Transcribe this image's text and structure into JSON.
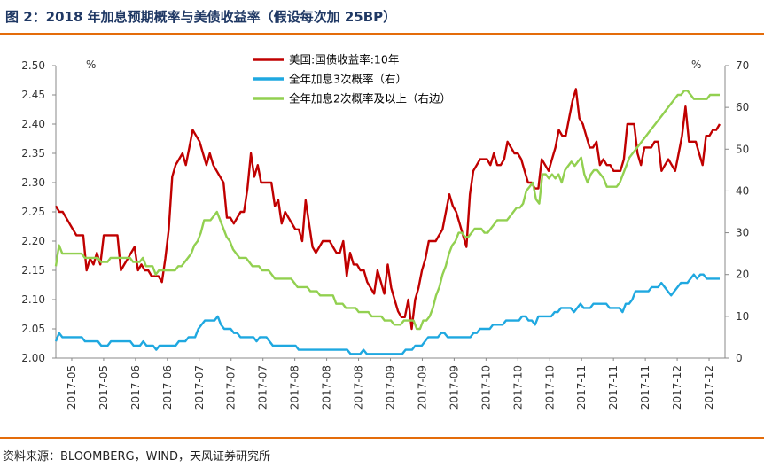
{
  "header": {
    "title": "图 2：2018 年加息预期概率与美债收益率（假设每次加 25BP）"
  },
  "footer": {
    "source": "资料来源：BLOOMBERG，WIND，天风证券研究所"
  },
  "colors": {
    "accent_rule": "#e46c0a",
    "title": "#1f3864",
    "series_red": "#c00000",
    "series_blue": "#1fa8e0",
    "series_green": "#92d050"
  },
  "chart_data": {
    "type": "line",
    "title": "",
    "y_left": {
      "unit_label": "%",
      "range": [
        2.0,
        2.5
      ],
      "ticks": [
        "2.00",
        "2.05",
        "2.10",
        "2.15",
        "2.20",
        "2.25",
        "2.30",
        "2.35",
        "2.40",
        "2.45",
        "2.50"
      ]
    },
    "y_right": {
      "unit_label": "%",
      "range": [
        0,
        70
      ],
      "ticks": [
        "0",
        "10",
        "20",
        "30",
        "40",
        "50",
        "60",
        "70"
      ]
    },
    "x_tick_labels": [
      "2017-05",
      "2017-05",
      "2017-06",
      "2017-06",
      "2017-07",
      "2017-07",
      "2017-07",
      "2017-08",
      "2017-08",
      "2017-08",
      "2017-09",
      "2017-09",
      "2017-09",
      "2017-10",
      "2017-10",
      "2017-10",
      "2017-11",
      "2017-11",
      "2017-11",
      "2017-12",
      "2017-12"
    ],
    "legend_position": "top-center",
    "grid": false,
    "series": [
      {
        "name": "美国:国债收益率:10年",
        "axis": "left",
        "color": "#c00000",
        "values": [
          2.26,
          2.25,
          2.25,
          2.24,
          2.23,
          2.22,
          2.21,
          2.21,
          2.21,
          2.15,
          2.17,
          2.16,
          2.18,
          2.16,
          2.21,
          2.21,
          2.21,
          2.21,
          2.21,
          2.15,
          2.16,
          2.17,
          2.18,
          2.19,
          2.15,
          2.16,
          2.15,
          2.15,
          2.14,
          2.14,
          2.14,
          2.13,
          2.17,
          2.22,
          2.31,
          2.33,
          2.34,
          2.35,
          2.33,
          2.36,
          2.39,
          2.38,
          2.37,
          2.35,
          2.33,
          2.35,
          2.33,
          2.32,
          2.31,
          2.3,
          2.24,
          2.24,
          2.23,
          2.24,
          2.25,
          2.25,
          2.29,
          2.35,
          2.31,
          2.33,
          2.3,
          2.3,
          2.3,
          2.3,
          2.26,
          2.27,
          2.23,
          2.25,
          2.24,
          2.23,
          2.22,
          2.22,
          2.2,
          2.27,
          2.23,
          2.19,
          2.18,
          2.19,
          2.2,
          2.2,
          2.2,
          2.19,
          2.18,
          2.18,
          2.2,
          2.14,
          2.18,
          2.16,
          2.16,
          2.15,
          2.15,
          2.13,
          2.12,
          2.11,
          2.15,
          2.13,
          2.11,
          2.16,
          2.12,
          2.1,
          2.08,
          2.07,
          2.07,
          2.1,
          2.05,
          2.1,
          2.12,
          2.15,
          2.17,
          2.2,
          2.2,
          2.2,
          2.21,
          2.22,
          2.25,
          2.28,
          2.26,
          2.25,
          2.23,
          2.21,
          2.19,
          2.28,
          2.32,
          2.33,
          2.34,
          2.34,
          2.34,
          2.33,
          2.35,
          2.33,
          2.33,
          2.34,
          2.37,
          2.36,
          2.35,
          2.35,
          2.34,
          2.32,
          2.3,
          2.3,
          2.29,
          2.29,
          2.34,
          2.33,
          2.32,
          2.34,
          2.36,
          2.39,
          2.38,
          2.38,
          2.41,
          2.44,
          2.46,
          2.41,
          2.4,
          2.38,
          2.36,
          2.36,
          2.37,
          2.33,
          2.34,
          2.33,
          2.33,
          2.32,
          2.32,
          2.32,
          2.34,
          2.4,
          2.4,
          2.4,
          2.35,
          2.33,
          2.36,
          2.36,
          2.36,
          2.37,
          2.37,
          2.32,
          2.33,
          2.34,
          2.33,
          2.32,
          2.35,
          2.38,
          2.43,
          2.37,
          2.37,
          2.37,
          2.35,
          2.33,
          2.38,
          2.38,
          2.39,
          2.39,
          2.4
        ]
      },
      {
        "name": "全年加息3次概率（右）",
        "axis": "right",
        "color": "#1fa8e0",
        "values": [
          4,
          6,
          5,
          5,
          5,
          5,
          5,
          5,
          5,
          4,
          4,
          4,
          4,
          4,
          3,
          3,
          3,
          4,
          4,
          4,
          4,
          4,
          4,
          4,
          3,
          3,
          3,
          4,
          3,
          3,
          3,
          2,
          3,
          3,
          3,
          3,
          3,
          3,
          4,
          4,
          4,
          5,
          5,
          5,
          7,
          8,
          9,
          9,
          9,
          9,
          10,
          8,
          7,
          7,
          7,
          6,
          6,
          5,
          5,
          5,
          5,
          5,
          4,
          5,
          5,
          5,
          4,
          3,
          3,
          3,
          3,
          3,
          3,
          3,
          3,
          2,
          2,
          2,
          2,
          2,
          2,
          2,
          2,
          2,
          2,
          2,
          2,
          2,
          2,
          2,
          2,
          1,
          1,
          1,
          1,
          2,
          1,
          1,
          1,
          1,
          1,
          1,
          1,
          1,
          1,
          1,
          1,
          1,
          2,
          2,
          2,
          3,
          3,
          3,
          4,
          5,
          5,
          5,
          5,
          6,
          6,
          5,
          5,
          5,
          5,
          5,
          5,
          5,
          5,
          6,
          6,
          7,
          7,
          7,
          7,
          8,
          8,
          8,
          8,
          9,
          9,
          9,
          9,
          9,
          10,
          10,
          9,
          9,
          8,
          10,
          10,
          10,
          10,
          10,
          11,
          11,
          12,
          12,
          12,
          12,
          11,
          12,
          13,
          12,
          12,
          12,
          13,
          13,
          13,
          13,
          13,
          12,
          12,
          12,
          12,
          11,
          13,
          13,
          14,
          16,
          16,
          16,
          16,
          16,
          17,
          17,
          17,
          18,
          17,
          16,
          15,
          16,
          17,
          18,
          18,
          18,
          19,
          20,
          19,
          20,
          20,
          19,
          19,
          19,
          19,
          19
        ]
      },
      {
        "name": "全年加息2次概率及以上（右边）",
        "axis": "right",
        "color": "#92d050",
        "values": [
          22,
          27,
          25,
          25,
          25,
          25,
          25,
          25,
          25,
          24,
          24,
          24,
          24,
          24,
          23,
          23,
          23,
          24,
          24,
          24,
          24,
          24,
          24,
          24,
          23,
          23,
          23,
          24,
          22,
          22,
          22,
          20,
          21,
          21,
          21,
          21,
          21,
          21,
          22,
          22,
          23,
          24,
          25,
          27,
          28,
          30,
          33,
          33,
          33,
          34,
          35,
          33,
          31,
          29,
          28,
          26,
          25,
          24,
          24,
          24,
          23,
          22,
          22,
          22,
          21,
          21,
          21,
          20,
          19,
          19,
          19,
          19,
          19,
          19,
          18,
          17,
          17,
          17,
          17,
          16,
          16,
          16,
          15,
          15,
          15,
          15,
          15,
          13,
          13,
          13,
          12,
          12,
          12,
          12,
          11,
          11,
          11,
          11,
          10,
          10,
          10,
          10,
          9,
          9,
          9,
          8,
          8,
          8,
          9,
          9,
          9,
          9,
          7,
          7,
          9,
          9,
          10,
          12,
          15,
          17,
          20,
          22,
          25,
          27,
          28,
          30,
          30,
          29,
          29,
          30,
          31,
          31,
          31,
          30,
          30,
          31,
          32,
          33,
          33,
          33,
          33,
          34,
          35,
          36,
          36,
          37,
          40,
          41,
          42,
          38,
          37,
          44,
          44,
          43,
          44,
          43,
          44,
          42,
          45,
          46,
          47,
          46,
          47,
          48,
          44,
          42,
          44,
          45,
          45,
          44,
          43,
          41,
          41,
          41,
          41,
          42,
          44,
          46,
          48,
          49,
          50,
          51,
          52,
          53,
          54,
          55,
          56,
          57,
          58,
          59,
          60,
          61,
          62,
          63,
          63,
          64,
          64,
          63,
          62,
          62,
          62,
          62,
          62,
          63,
          63,
          63,
          63
        ]
      }
    ]
  }
}
